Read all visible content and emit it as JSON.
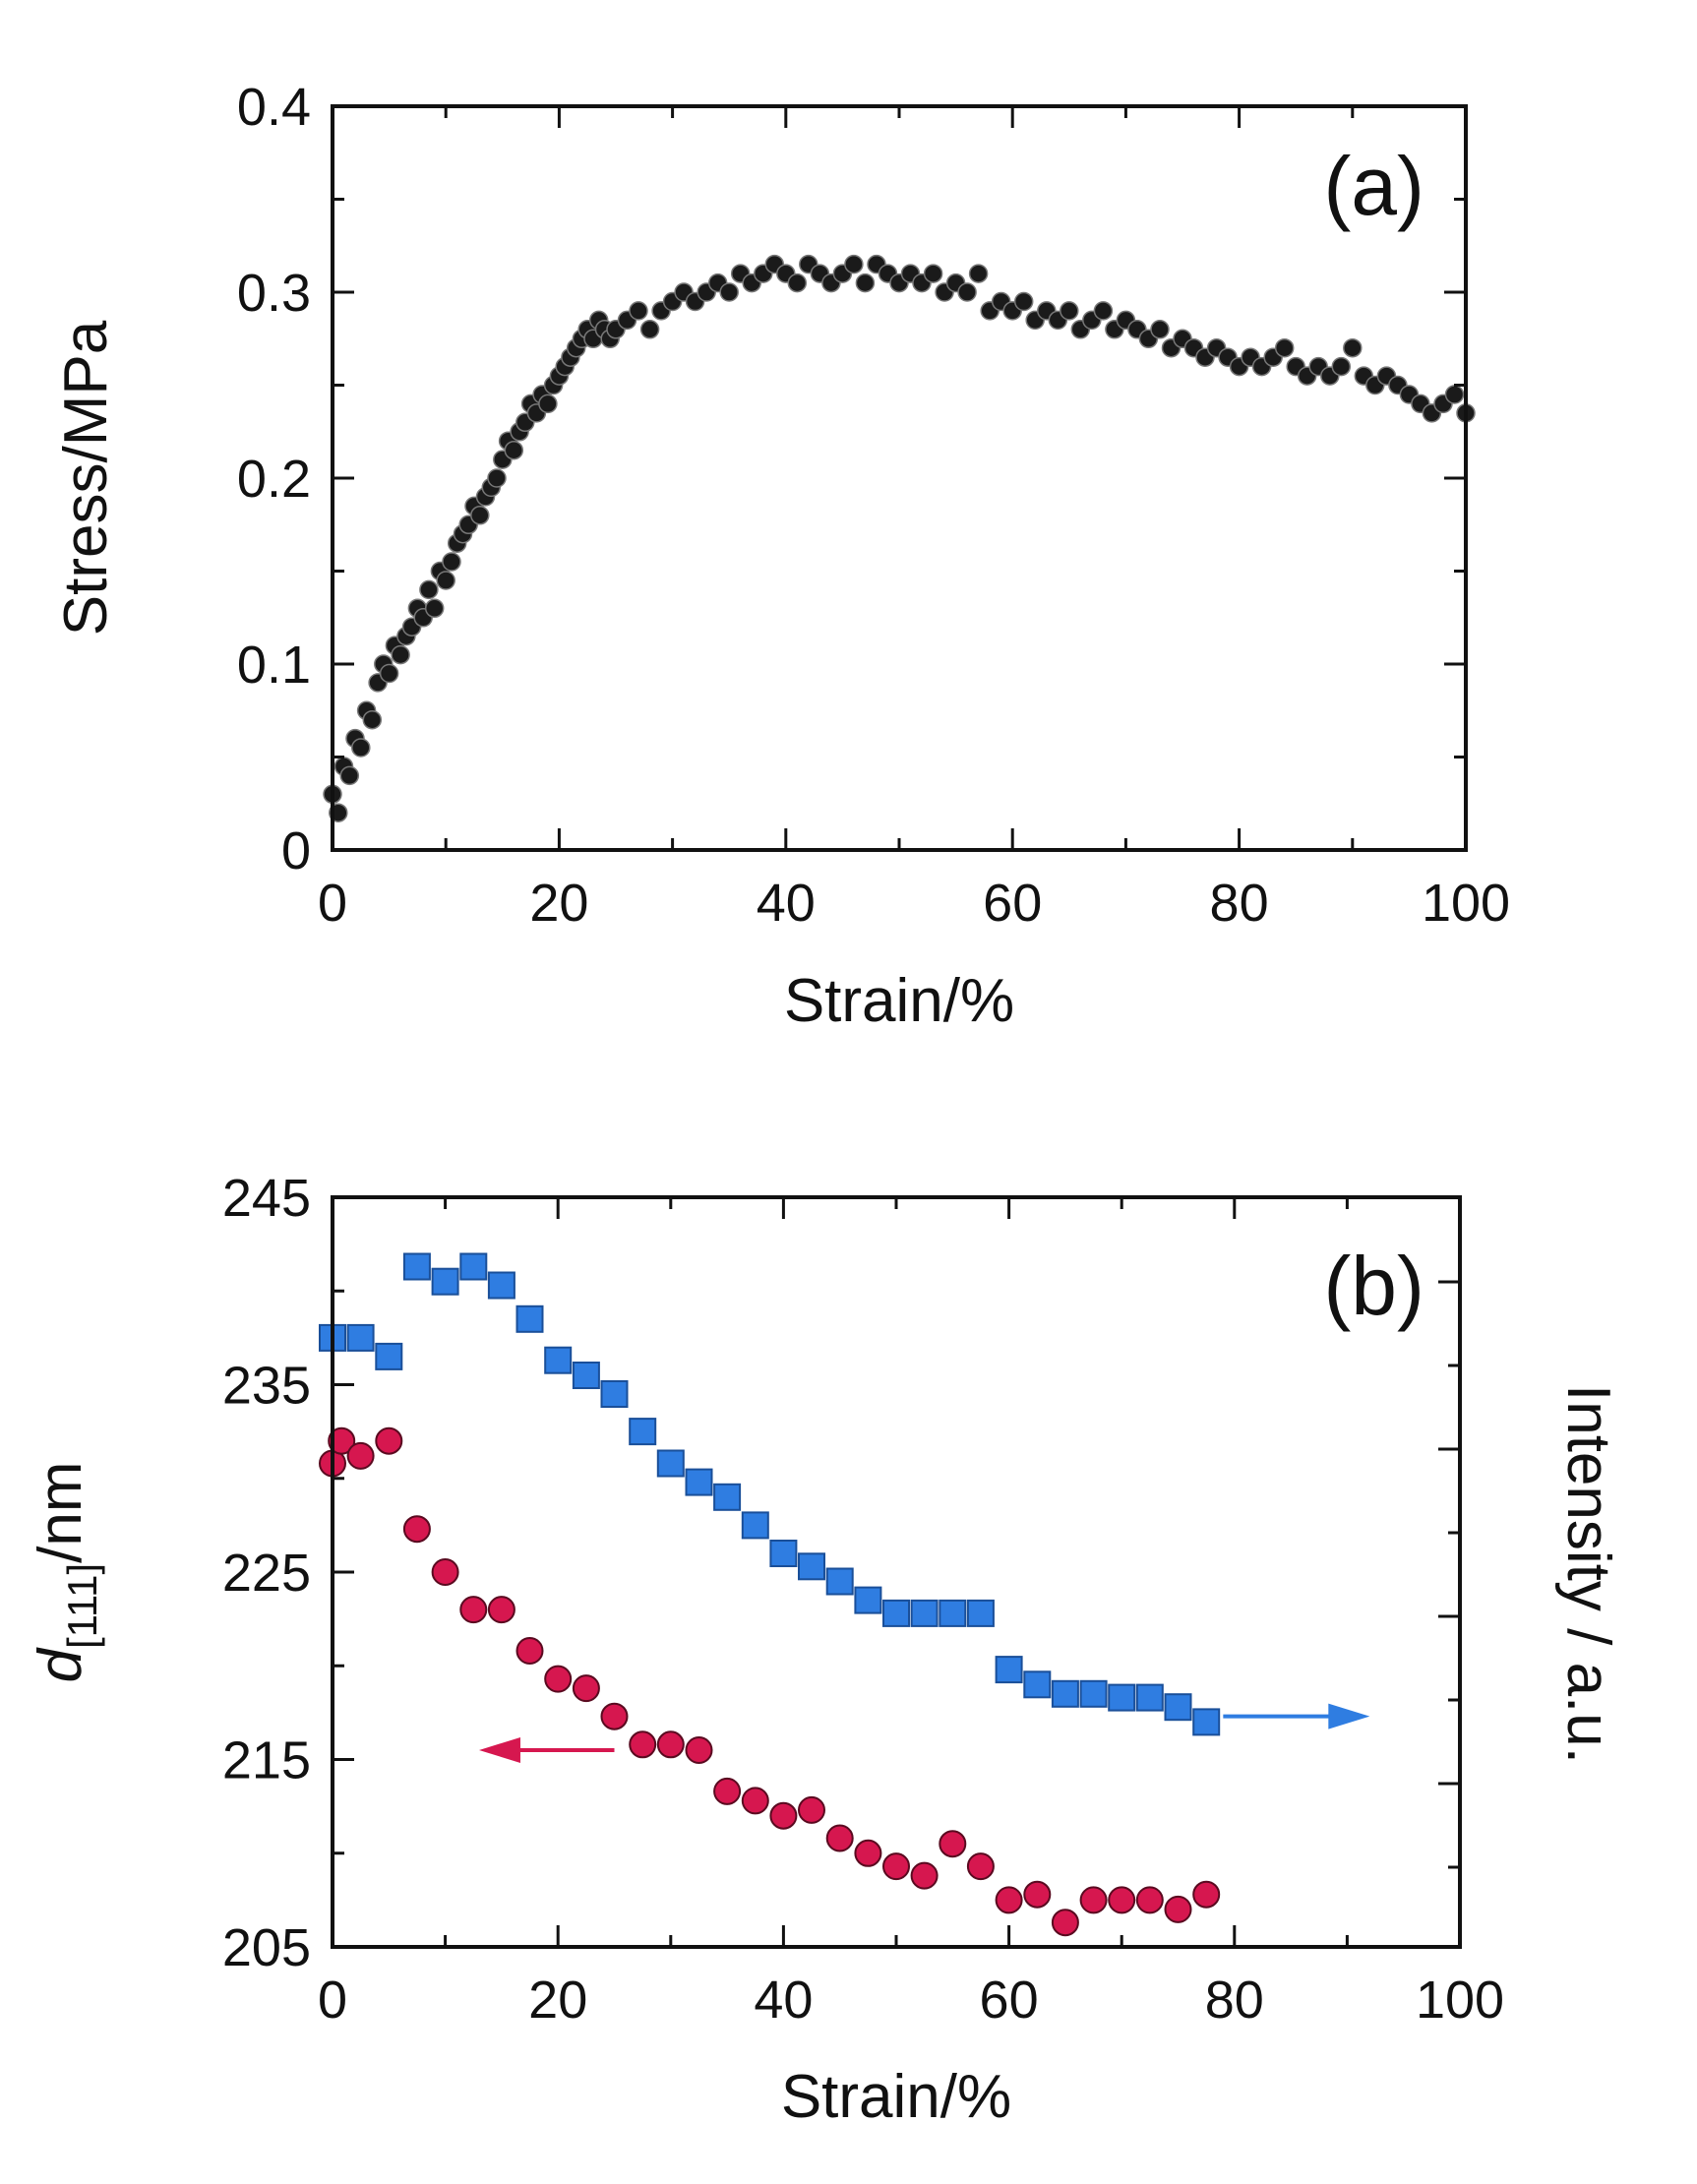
{
  "chart_data": [
    {
      "type": "scatter",
      "panel_label": "(a)",
      "xlabel": "Strain/%",
      "ylabel": "Stress/MPa",
      "xlim": [
        0,
        100
      ],
      "ylim": [
        0,
        0.4
      ],
      "x_ticks": [
        "0",
        "20",
        "40",
        "60",
        "80",
        "100"
      ],
      "y_ticks": [
        "0",
        "0.1",
        "0.2",
        "0.3",
        "0.4"
      ],
      "marker_color": "#1a1a1a",
      "series": [
        {
          "name": "Stress",
          "points": [
            [
              0,
              0.03
            ],
            [
              0.5,
              0.02
            ],
            [
              1,
              0.045
            ],
            [
              1.5,
              0.04
            ],
            [
              2,
              0.06
            ],
            [
              2.5,
              0.055
            ],
            [
              3,
              0.075
            ],
            [
              3.5,
              0.07
            ],
            [
              4,
              0.09
            ],
            [
              4.5,
              0.1
            ],
            [
              5,
              0.095
            ],
            [
              5.5,
              0.11
            ],
            [
              6,
              0.105
            ],
            [
              6.5,
              0.115
            ],
            [
              7,
              0.12
            ],
            [
              7.5,
              0.13
            ],
            [
              8,
              0.125
            ],
            [
              8.5,
              0.14
            ],
            [
              9,
              0.13
            ],
            [
              9.5,
              0.15
            ],
            [
              10,
              0.145
            ],
            [
              10.5,
              0.155
            ],
            [
              11,
              0.165
            ],
            [
              11.5,
              0.17
            ],
            [
              12,
              0.175
            ],
            [
              12.5,
              0.185
            ],
            [
              13,
              0.18
            ],
            [
              13.5,
              0.19
            ],
            [
              14,
              0.195
            ],
            [
              14.5,
              0.2
            ],
            [
              15,
              0.21
            ],
            [
              15.5,
              0.22
            ],
            [
              16,
              0.215
            ],
            [
              16.5,
              0.225
            ],
            [
              17,
              0.23
            ],
            [
              17.5,
              0.24
            ],
            [
              18,
              0.235
            ],
            [
              18.5,
              0.245
            ],
            [
              19,
              0.24
            ],
            [
              19.5,
              0.25
            ],
            [
              20,
              0.255
            ],
            [
              20.5,
              0.26
            ],
            [
              21,
              0.265
            ],
            [
              21.5,
              0.27
            ],
            [
              22,
              0.275
            ],
            [
              22.5,
              0.28
            ],
            [
              23,
              0.275
            ],
            [
              23.5,
              0.285
            ],
            [
              24,
              0.28
            ],
            [
              24.5,
              0.275
            ],
            [
              25,
              0.28
            ],
            [
              26,
              0.285
            ],
            [
              27,
              0.29
            ],
            [
              28,
              0.28
            ],
            [
              29,
              0.29
            ],
            [
              30,
              0.295
            ],
            [
              31,
              0.3
            ],
            [
              32,
              0.295
            ],
            [
              33,
              0.3
            ],
            [
              34,
              0.305
            ],
            [
              35,
              0.3
            ],
            [
              36,
              0.31
            ],
            [
              37,
              0.305
            ],
            [
              38,
              0.31
            ],
            [
              39,
              0.315
            ],
            [
              40,
              0.31
            ],
            [
              41,
              0.305
            ],
            [
              42,
              0.315
            ],
            [
              43,
              0.31
            ],
            [
              44,
              0.305
            ],
            [
              45,
              0.31
            ],
            [
              46,
              0.315
            ],
            [
              47,
              0.305
            ],
            [
              48,
              0.315
            ],
            [
              49,
              0.31
            ],
            [
              50,
              0.305
            ],
            [
              51,
              0.31
            ],
            [
              52,
              0.305
            ],
            [
              53,
              0.31
            ],
            [
              54,
              0.3
            ],
            [
              55,
              0.305
            ],
            [
              56,
              0.3
            ],
            [
              57,
              0.31
            ],
            [
              58,
              0.29
            ],
            [
              59,
              0.295
            ],
            [
              60,
              0.29
            ],
            [
              61,
              0.295
            ],
            [
              62,
              0.285
            ],
            [
              63,
              0.29
            ],
            [
              64,
              0.285
            ],
            [
              65,
              0.29
            ],
            [
              66,
              0.28
            ],
            [
              67,
              0.285
            ],
            [
              68,
              0.29
            ],
            [
              69,
              0.28
            ],
            [
              70,
              0.285
            ],
            [
              71,
              0.28
            ],
            [
              72,
              0.275
            ],
            [
              73,
              0.28
            ],
            [
              74,
              0.27
            ],
            [
              75,
              0.275
            ],
            [
              76,
              0.27
            ],
            [
              77,
              0.265
            ],
            [
              78,
              0.27
            ],
            [
              79,
              0.265
            ],
            [
              80,
              0.26
            ],
            [
              81,
              0.265
            ],
            [
              82,
              0.26
            ],
            [
              83,
              0.265
            ],
            [
              84,
              0.27
            ],
            [
              85,
              0.26
            ],
            [
              86,
              0.255
            ],
            [
              87,
              0.26
            ],
            [
              88,
              0.255
            ],
            [
              89,
              0.26
            ],
            [
              90,
              0.27
            ],
            [
              91,
              0.255
            ],
            [
              92,
              0.25
            ],
            [
              93,
              0.255
            ],
            [
              94,
              0.25
            ],
            [
              95,
              0.245
            ],
            [
              96,
              0.24
            ],
            [
              97,
              0.235
            ],
            [
              98,
              0.24
            ],
            [
              99,
              0.245
            ],
            [
              100,
              0.235
            ]
          ]
        }
      ]
    },
    {
      "type": "scatter",
      "panel_label": "(b)",
      "xlabel": "Strain/%",
      "ylabel_left": "nm",
      "ylabel_left_symbol": "d",
      "ylabel_left_subscript": "[111]",
      "ylabel_right": "Intensity / a.u.",
      "xlim": [
        0,
        100
      ],
      "ylim": [
        205,
        245
      ],
      "x_ticks": [
        "0",
        "20",
        "40",
        "60",
        "80",
        "100"
      ],
      "y_ticks": [
        "205",
        "215",
        "225",
        "235",
        "245"
      ],
      "left_color": "#d6174f",
      "right_color": "#2f7de1",
      "series": [
        {
          "name": "d[111]",
          "axis": "left",
          "marker": "circle",
          "color": "#d6174f",
          "points": [
            [
              0,
              230.8
            ],
            [
              0.8,
              232
            ],
            [
              2.5,
              231.2
            ],
            [
              5,
              232
            ],
            [
              7.5,
              227.3
            ],
            [
              10,
              225
            ],
            [
              12.5,
              223
            ],
            [
              15,
              223
            ],
            [
              17.5,
              220.8
            ],
            [
              20,
              219.3
            ],
            [
              22.5,
              218.8
            ],
            [
              25,
              217.3
            ],
            [
              27.5,
              215.8
            ],
            [
              30,
              215.8
            ],
            [
              32.5,
              215.5
            ],
            [
              35,
              213.3
            ],
            [
              37.5,
              212.8
            ],
            [
              40,
              212
            ],
            [
              42.5,
              212.3
            ],
            [
              45,
              210.8
            ],
            [
              47.5,
              210
            ],
            [
              50,
              209.3
            ],
            [
              52.5,
              208.8
            ],
            [
              55,
              210.5
            ],
            [
              57.5,
              209.3
            ],
            [
              60,
              207.5
            ],
            [
              62.5,
              207.8
            ],
            [
              65,
              206.3
            ],
            [
              67.5,
              207.5
            ],
            [
              70,
              207.5
            ],
            [
              72.5,
              207.5
            ],
            [
              75,
              207
            ],
            [
              77.5,
              207.8
            ]
          ]
        },
        {
          "name": "Intensity",
          "axis": "right",
          "marker": "square",
          "color": "#2f7de1",
          "points": [
            [
              0,
              237.5
            ],
            [
              2.5,
              237.5
            ],
            [
              5,
              236.5
            ],
            [
              7.5,
              241.3
            ],
            [
              10,
              240.5
            ],
            [
              12.5,
              241.3
            ],
            [
              15,
              240.3
            ],
            [
              17.5,
              238.5
            ],
            [
              20,
              236.3
            ],
            [
              22.5,
              235.5
            ],
            [
              25,
              234.5
            ],
            [
              27.5,
              232.5
            ],
            [
              30,
              230.8
            ],
            [
              32.5,
              229.8
            ],
            [
              35,
              229
            ],
            [
              37.5,
              227.5
            ],
            [
              40,
              226
            ],
            [
              42.5,
              225.3
            ],
            [
              45,
              224.5
            ],
            [
              47.5,
              223.5
            ],
            [
              50,
              222.8
            ],
            [
              52.5,
              222.8
            ],
            [
              55,
              222.8
            ],
            [
              57.5,
              222.8
            ],
            [
              60,
              219.8
            ],
            [
              62.5,
              219
            ],
            [
              65,
              218.5
            ],
            [
              67.5,
              218.5
            ],
            [
              70,
              218.3
            ],
            [
              72.5,
              218.3
            ],
            [
              75,
              217.8
            ],
            [
              77.5,
              217
            ]
          ]
        }
      ],
      "annotations": [
        {
          "type": "arrow",
          "direction": "left",
          "color": "#d6174f",
          "from": [
            25,
            215.5
          ],
          "to": [
            13,
            215.5
          ]
        },
        {
          "type": "arrow",
          "direction": "right",
          "color": "#2f7de1",
          "from": [
            79,
            217.3
          ],
          "to": [
            92,
            217.3
          ]
        }
      ]
    }
  ]
}
